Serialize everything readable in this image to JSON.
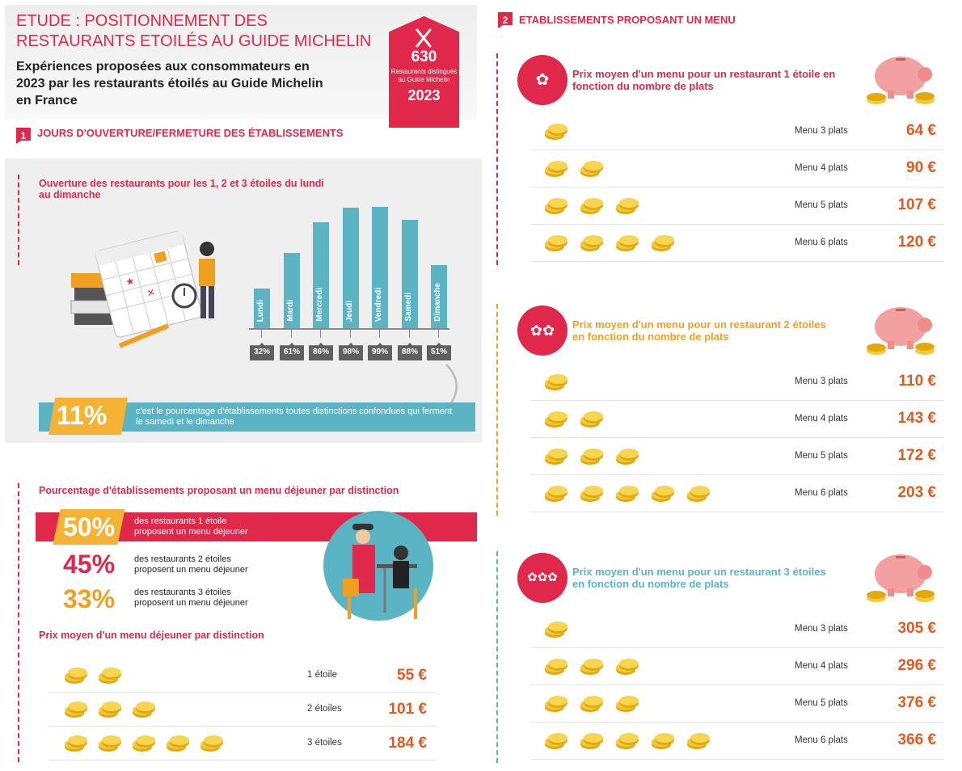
{
  "header": {
    "title": "ETUDE : POSITIONNEMENT DES RESTAURANTS ETOILÉS AU GUIDE MICHELIN",
    "subtitle": "Expériences proposées aux consommateurs en 2023 par les restaurants étoilés au Guide Michelin en France",
    "badge_number": "630",
    "badge_text": "Restaurants distingués au Guide Michelin",
    "badge_year": "2023"
  },
  "section1": {
    "num": "1",
    "title": "JOURS D'OUVERTURE/FERMETURE DES ÉTABLISSEMENTS",
    "chart_title": "Ouverture des restaurants pour les 1, 2 et 3 étoiles du lundi au dimanche",
    "stat_pct": "11%",
    "stat_text": "c'est le pourcentage d'établissements toutes distinctions confondues qui ferment le samedi et le dimanche"
  },
  "chart_data": {
    "type": "bar",
    "title": "Ouverture des restaurants pour les 1, 2 et 3 étoiles du lundi au dimanche",
    "categories": [
      "Lundi",
      "Mardi",
      "Mercredi",
      "Jeudi",
      "Vendredi",
      "Samedi",
      "Dimanche"
    ],
    "values": [
      32,
      61,
      86,
      98,
      99,
      88,
      51
    ],
    "labels": [
      "32%",
      "61%",
      "86%",
      "98%",
      "99%",
      "88%",
      "51%"
    ],
    "ylim": [
      0,
      100
    ],
    "grid": false,
    "color": "#5ab4c4"
  },
  "lunch": {
    "title": "Pourcentage d'établissements proposant un menu déjeuner par distinction",
    "rows": [
      {
        "pct": "50%",
        "line1": "des restaurants 1 étoile",
        "line2": "proposent un menu déjeuner"
      },
      {
        "pct": "45%",
        "line1": "des restaurants 2 étoiles",
        "line2": "proposent un menu déjeuner"
      },
      {
        "pct": "33%",
        "line1": "des restaurants 3 étoiles",
        "line2": "proposent un menu déjeuner"
      }
    ],
    "price_title": "Prix moyen d'un menu déjeuner par distinction",
    "prices": [
      {
        "coins": 2,
        "label": "1 étoile",
        "price": "55 €"
      },
      {
        "coins": 3,
        "label": "2 étoiles",
        "price": "101 €"
      },
      {
        "coins": 5,
        "label": "3 étoiles",
        "price": "184 €"
      }
    ]
  },
  "section2": {
    "num": "2",
    "title": "ETABLISSEMENTS PROPOSANT UN MENU",
    "groups": [
      {
        "icon": "✿",
        "title": "Prix moyen d'un menu pour un restaurant 1 étoile en fonction du nombre de plats",
        "color": "#e0284a",
        "rows": [
          {
            "coins": 1,
            "label": "Menu 3 plats",
            "price": "64 €"
          },
          {
            "coins": 2,
            "label": "Menu 4 plats",
            "price": "90 €"
          },
          {
            "coins": 3,
            "label": "Menu 5 plats",
            "price": "107 €"
          },
          {
            "coins": 4,
            "label": "Menu 6 plats",
            "price": "120 €"
          }
        ]
      },
      {
        "icon": "✿✿",
        "title": "Prix moyen d'un menu pour un restaurant 2 étoiles en fonction du nombre de plats",
        "color": "#f0a020",
        "rows": [
          {
            "coins": 1,
            "label": "Menu 3 plats",
            "price": "110 €"
          },
          {
            "coins": 2,
            "label": "Menu 4 plats",
            "price": "143 €"
          },
          {
            "coins": 3,
            "label": "Menu 5 plats",
            "price": "172 €"
          },
          {
            "coins": 5,
            "label": "Menu 6 plats",
            "price": "203 €"
          }
        ]
      },
      {
        "icon": "✿✿✿",
        "title": "Prix moyen d'un menu pour un restaurant 3 étoiles en fonction du nombre de plats",
        "color": "#5ab4c4",
        "rows": [
          {
            "coins": 1,
            "label": "Menu 3 plats",
            "price": "305 €"
          },
          {
            "coins": 3,
            "label": "Menu 4 plats",
            "price": "296 €"
          },
          {
            "coins": 3,
            "label": "Menu 5 plats",
            "price": "376 €"
          },
          {
            "coins": 5,
            "label": "Menu 6 plats",
            "price": "366 €"
          }
        ]
      }
    ]
  }
}
